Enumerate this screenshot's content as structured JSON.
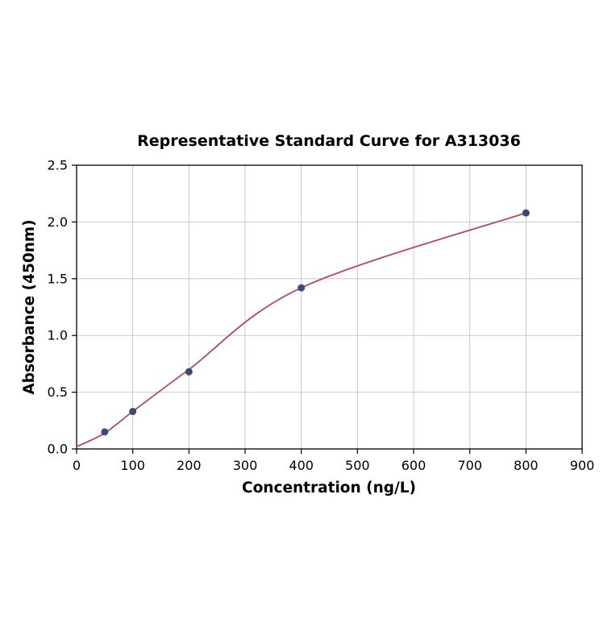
{
  "chart_data": {
    "type": "scatter",
    "title": "Representative Standard Curve for A313036",
    "xlabel": "Concentration (ng/L)",
    "ylabel": "Absorbance (450nm)",
    "xlim": [
      0,
      900
    ],
    "ylim": [
      0,
      2.5
    ],
    "grid": true,
    "legend": "none",
    "x_ticks": [
      0,
      100,
      200,
      300,
      400,
      500,
      600,
      700,
      800,
      900
    ],
    "x_tick_labels": [
      "0",
      "100",
      "200",
      "300",
      "400",
      "500",
      "600",
      "700",
      "800",
      "900"
    ],
    "y_ticks": [
      0.0,
      0.5,
      1.0,
      1.5,
      2.0,
      2.5
    ],
    "y_tick_labels": [
      "0.0",
      "0.5",
      "1.0",
      "1.5",
      "2.0",
      "2.5"
    ],
    "points": {
      "x": [
        50,
        100,
        200,
        400,
        800
      ],
      "y": [
        0.15,
        0.33,
        0.68,
        1.42,
        2.08
      ]
    },
    "fit_curve": {
      "x": [
        0,
        50,
        100,
        200,
        400,
        800
      ],
      "y": [
        0.02,
        0.14,
        0.33,
        0.7,
        1.42,
        2.08
      ]
    },
    "colors": {
      "curve": "#b04a63",
      "points": "#3a4a78",
      "grid": "#c9c9c9",
      "axis": "#000000",
      "background": "#ffffff"
    }
  }
}
